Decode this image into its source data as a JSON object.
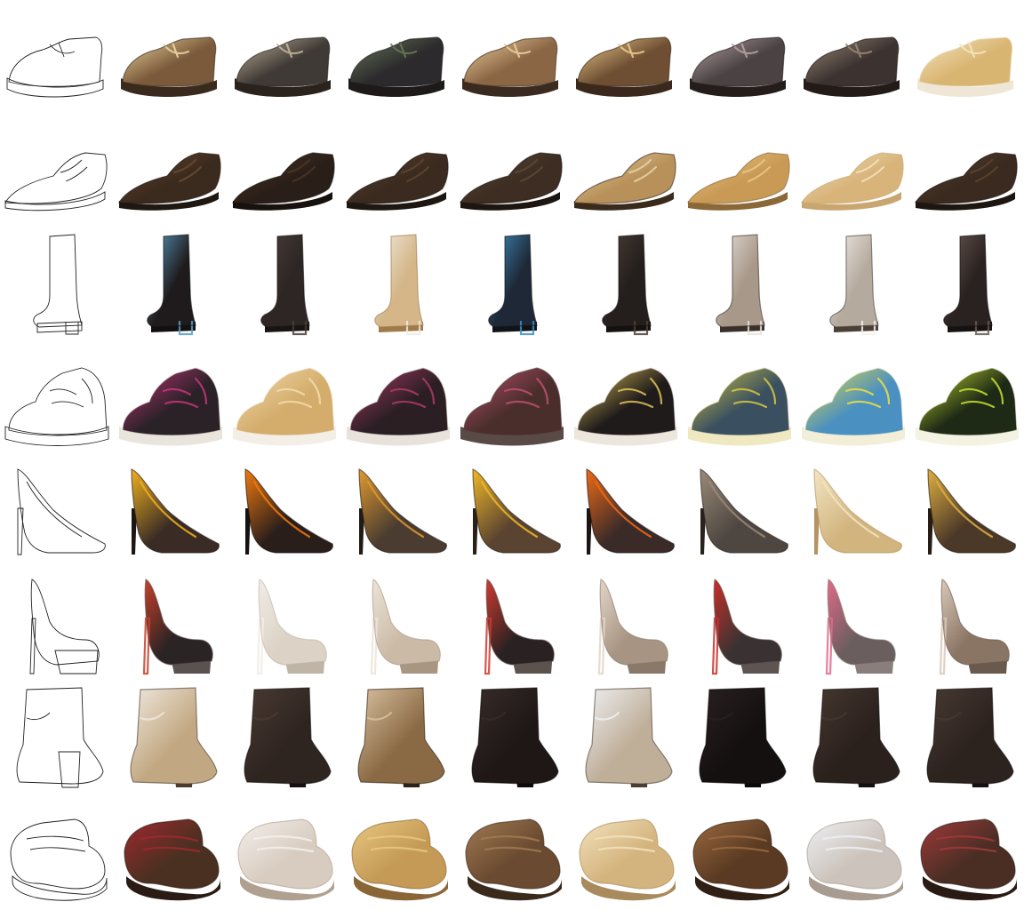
{
  "figure": {
    "rows": [
      {
        "type": "low-mary-jane-platform",
        "sketch": "sketch",
        "samples": [
          {
            "upper": "#7a5a3a",
            "accent": "#f0d9a4",
            "sole": "#3a2a1e"
          },
          {
            "upper": "#3f3a36",
            "accent": "#c8b9a0",
            "sole": "#2a221c"
          },
          {
            "upper": "#2c2a2c",
            "accent": "#6a7a5c",
            "sole": "#1e1a1a"
          },
          {
            "upper": "#8b6644",
            "accent": "#efd3a2",
            "sole": "#3b2a1f"
          },
          {
            "upper": "#6e4f33",
            "accent": "#f2cf8e",
            "sole": "#3a281c"
          },
          {
            "upper": "#4a4243",
            "accent": "#b8a5a5",
            "sole": "#241d1b"
          },
          {
            "upper": "#3c3330",
            "accent": "#9c8a78",
            "sole": "#221b17"
          },
          {
            "upper": "#d9b572",
            "accent": "#f6e6c3",
            "sole": "#efe6d6"
          }
        ]
      },
      {
        "type": "oxford",
        "sketch": "sketch",
        "samples": [
          {
            "upper": "#3b2a1e",
            "accent": "#6b4a2e",
            "sole": "#1f1711"
          },
          {
            "upper": "#2a1f18",
            "accent": "#4a3626",
            "sole": "#16110d"
          },
          {
            "upper": "#3a2a1f",
            "accent": "#5e4530",
            "sole": "#1d1611"
          },
          {
            "upper": "#3d2d22",
            "accent": "#5d4836",
            "sole": "#1c1510"
          },
          {
            "upper": "#b8915a",
            "accent": "#e8d2a8",
            "sole": "#3a2a1c"
          },
          {
            "upper": "#c99a55",
            "accent": "#e9c88a",
            "sole": "#8a6838"
          },
          {
            "upper": "#d8b47a",
            "accent": "#f3e2bf",
            "sole": "#c9a670"
          },
          {
            "upper": "#3a2a1f",
            "accent": "#5b4330",
            "sole": "#1c1510"
          }
        ]
      },
      {
        "type": "tall-boot",
        "sketch": "sketch",
        "samples": [
          {
            "upper": "#1f1b1c",
            "accent": "#5a9fc8",
            "sole": "#121010"
          },
          {
            "upper": "#2d2624",
            "accent": "#4a3f3a",
            "sole": "#181414"
          },
          {
            "upper": "#d4b688",
            "accent": "#f0ebe3",
            "sole": "#a07a48"
          },
          {
            "upper": "#1e2836",
            "accent": "#3f8fbf",
            "sole": "#101418"
          },
          {
            "upper": "#241e1c",
            "accent": "#4e403a",
            "sole": "#141110"
          },
          {
            "upper": "#a8988a",
            "accent": "#e8e2da",
            "sole": "#3a302a"
          },
          {
            "upper": "#b5aa9e",
            "accent": "#f4f1ec",
            "sole": "#4a4038"
          },
          {
            "upper": "#2a2220",
            "accent": "#6a5a52",
            "sole": "#161211"
          }
        ]
      },
      {
        "type": "high-top-sneaker",
        "sketch": "sketch",
        "samples": [
          {
            "upper": "#2b2228",
            "accent": "#c8357a",
            "sole": "#e9e4dc"
          },
          {
            "upper": "#d4ad6c",
            "accent": "#f2dcae",
            "sole": "#f4efe6"
          },
          {
            "upper": "#2c1f24",
            "accent": "#b03a6a",
            "sole": "#e8e2da"
          },
          {
            "upper": "#4a2e2c",
            "accent": "#c0506e",
            "sole": "#5a4a46"
          },
          {
            "upper": "#1f1b1b",
            "accent": "#e0c35a",
            "sole": "#ece6dd"
          },
          {
            "upper": "#3a5060",
            "accent": "#d8c840",
            "sole": "#f0e8c0"
          },
          {
            "upper": "#4a90c0",
            "accent": "#f0e040",
            "sole": "#f2eed8"
          },
          {
            "upper": "#1e2a16",
            "accent": "#c8e030",
            "sole": "#f4f2e0"
          }
        ]
      },
      {
        "type": "stiletto-pump",
        "sketch": "sketch",
        "samples": [
          {
            "upper": "#3a2c24",
            "accent": "#f0b020",
            "sole": "#1e1612"
          },
          {
            "upper": "#2a1e1a",
            "accent": "#f07a10",
            "sole": "#161110"
          },
          {
            "upper": "#4a3c30",
            "accent": "#e09a30",
            "sole": "#221a14"
          },
          {
            "upper": "#5a4330",
            "accent": "#f0b828",
            "sole": "#2a2016"
          },
          {
            "upper": "#3a2a28",
            "accent": "#ee6a18",
            "sole": "#1c1412"
          },
          {
            "upper": "#4e4640",
            "accent": "#9a8a78",
            "sole": "#28221e"
          },
          {
            "upper": "#d2b47e",
            "accent": "#f2e4c2",
            "sole": "#b49462"
          },
          {
            "upper": "#4a3828",
            "accent": "#e0b040",
            "sole": "#261c14"
          }
        ]
      },
      {
        "type": "platform-stiletto",
        "sketch": "sketch",
        "samples": [
          {
            "upper": "#2a2424",
            "accent": "#c8402a",
            "sole": "#5a5250"
          },
          {
            "upper": "#dcd2c6",
            "accent": "#f2ece4",
            "sole": "#c0b4a6"
          },
          {
            "upper": "#cbbba6",
            "accent": "#ece4d8",
            "sole": "#a89682"
          },
          {
            "upper": "#2a2222",
            "accent": "#d03a30",
            "sole": "#5c524e"
          },
          {
            "upper": "#a89482",
            "accent": "#e2d6c8",
            "sole": "#8a7868"
          },
          {
            "upper": "#3a3232",
            "accent": "#c8302a",
            "sole": "#5e5452"
          },
          {
            "upper": "#6a5e5e",
            "accent": "#e06a8a",
            "sole": "#8a7e7c"
          },
          {
            "upper": "#8a7464",
            "accent": "#d8c8b8",
            "sole": "#6a5a4e"
          }
        ]
      },
      {
        "type": "ankle-boot",
        "sketch": "sketch",
        "samples": [
          {
            "upper": "#c2a882",
            "accent": "#f0e8de",
            "sole": "#4a3c30"
          },
          {
            "upper": "#2e2420",
            "accent": "#4a3a32",
            "sole": "#161110"
          },
          {
            "upper": "#8a6a44",
            "accent": "#d8c0a0",
            "sole": "#2e2218"
          },
          {
            "upper": "#1e1716",
            "accent": "#382c28",
            "sole": "#0e0b0a"
          },
          {
            "upper": "#bfae98",
            "accent": "#eef0f2",
            "sole": "#4a3e34"
          },
          {
            "upper": "#141010",
            "accent": "#2a2020",
            "sole": "#0a0808"
          },
          {
            "upper": "#2a201c",
            "accent": "#463830",
            "sole": "#141010"
          },
          {
            "upper": "#2c221e",
            "accent": "#483a32",
            "sole": "#151110"
          }
        ]
      },
      {
        "type": "clog",
        "sketch": "sketch",
        "samples": [
          {
            "upper": "#4a3020",
            "accent": "#a02830",
            "sole": "#2a1c14"
          },
          {
            "upper": "#d8ccc0",
            "accent": "#f4f0ec",
            "sole": "#b0a090"
          },
          {
            "upper": "#c49a56",
            "accent": "#e8c880",
            "sole": "#8a6636"
          },
          {
            "upper": "#6a4a30",
            "accent": "#a07a52",
            "sole": "#3a2a1c"
          },
          {
            "upper": "#d4b47e",
            "accent": "#f2e2bc",
            "sole": "#a88a5c"
          },
          {
            "upper": "#5a3a22",
            "accent": "#9a6a40",
            "sole": "#301f14"
          },
          {
            "upper": "#ccc4bc",
            "accent": "#eef0f4",
            "sole": "#a89c90"
          },
          {
            "upper": "#4a2e24",
            "accent": "#a03a3a",
            "sole": "#2a1a14"
          }
        ]
      }
    ]
  }
}
